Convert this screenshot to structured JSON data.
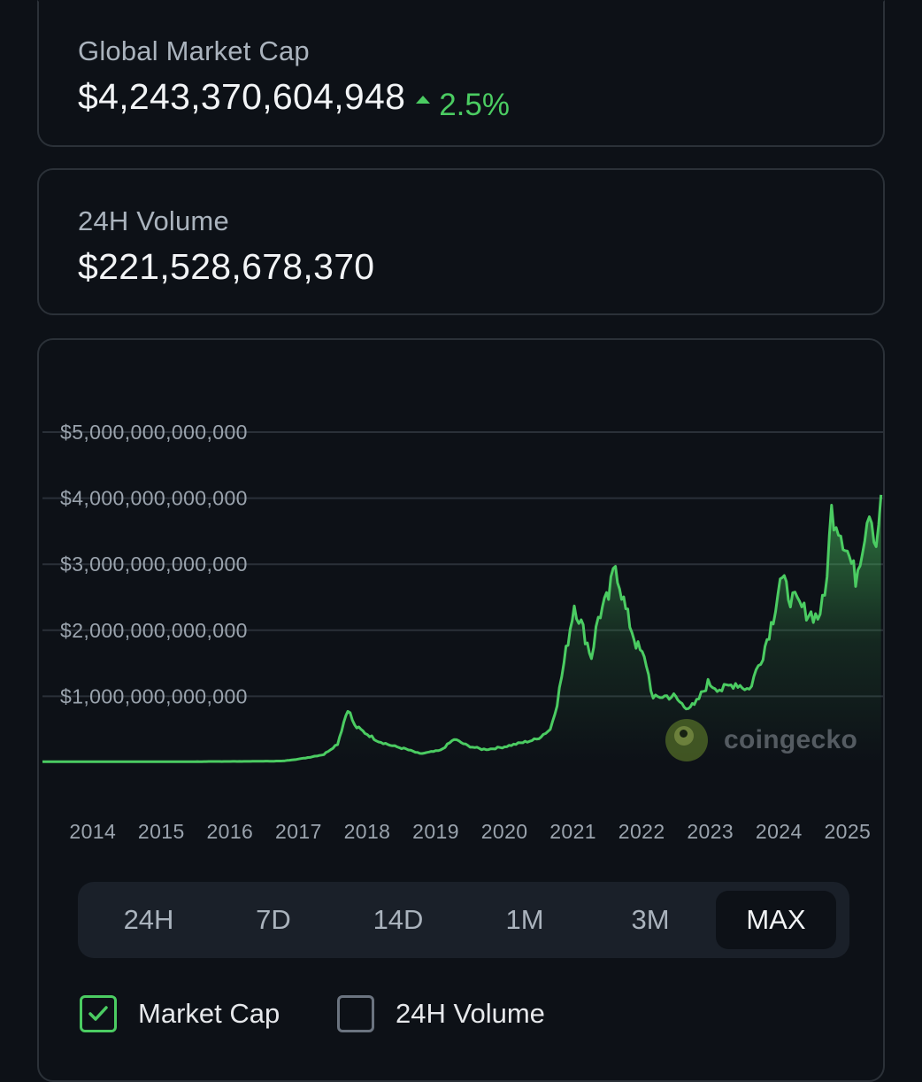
{
  "market_cap": {
    "label": "Global Market Cap",
    "value": "$4,243,370,604,948",
    "change": "2.5%",
    "change_direction": "up",
    "change_color": "#4bcc62"
  },
  "volume": {
    "label": "24H Volume",
    "value": "$221,528,678,370"
  },
  "watermark": "coingecko",
  "range_tabs": [
    {
      "label": "24H",
      "active": false
    },
    {
      "label": "7D",
      "active": false
    },
    {
      "label": "14D",
      "active": false
    },
    {
      "label": "1M",
      "active": false
    },
    {
      "label": "3M",
      "active": false
    },
    {
      "label": "MAX",
      "active": true
    }
  ],
  "legend": [
    {
      "label": "Market Cap",
      "checked": true,
      "icon": "check-icon"
    },
    {
      "label": "24H Volume",
      "checked": false
    }
  ],
  "chart_data": {
    "type": "area",
    "title": "",
    "xlabel": "",
    "ylabel": "",
    "line_color": "#4bcc62",
    "grid": true,
    "ylim": [
      0,
      5000000000000
    ],
    "y_ticks": [
      {
        "value": 1000000000000,
        "label": "$1,000,000,000,000"
      },
      {
        "value": 2000000000000,
        "label": "$2,000,000,000,000"
      },
      {
        "value": 3000000000000,
        "label": "$3,000,000,000,000"
      },
      {
        "value": 4000000000000,
        "label": "$4,000,000,000,000"
      },
      {
        "value": 5000000000000,
        "label": "$5,000,000,000,000"
      }
    ],
    "xlim": [
      2013.5,
      2025.75
    ],
    "x_ticks": [
      {
        "value": 2014,
        "label": "2014"
      },
      {
        "value": 2015,
        "label": "2015"
      },
      {
        "value": 2016,
        "label": "2016"
      },
      {
        "value": 2017,
        "label": "2017"
      },
      {
        "value": 2018,
        "label": "2018"
      },
      {
        "value": 2019,
        "label": "2019"
      },
      {
        "value": 2020,
        "label": "2020"
      },
      {
        "value": 2021,
        "label": "2021"
      },
      {
        "value": 2022,
        "label": "2022"
      },
      {
        "value": 2023,
        "label": "2023"
      },
      {
        "value": 2024,
        "label": "2024"
      },
      {
        "value": 2025,
        "label": "2025"
      }
    ],
    "series": [
      {
        "name": "Market Cap",
        "x": [
          2013.5,
          2014.5,
          2015.5,
          2016.5,
          2017.0,
          2017.3,
          2017.6,
          2017.8,
          2017.95,
          2018.05,
          2018.2,
          2018.4,
          2018.6,
          2018.8,
          2019.0,
          2019.3,
          2019.5,
          2019.7,
          2019.9,
          2020.0,
          2020.2,
          2020.5,
          2020.7,
          2020.9,
          2021.0,
          2021.1,
          2021.25,
          2021.35,
          2021.5,
          2021.6,
          2021.75,
          2021.85,
          2022.0,
          2022.15,
          2022.3,
          2022.4,
          2022.5,
          2022.7,
          2022.85,
          2023.0,
          2023.2,
          2023.4,
          2023.6,
          2023.8,
          2024.0,
          2024.15,
          2024.25,
          2024.4,
          2024.6,
          2024.8,
          2024.9,
          2025.0,
          2025.1,
          2025.2,
          2025.35,
          2025.45,
          2025.55,
          2025.65,
          2025.72
        ],
        "values": [
          10000000000,
          10000000000,
          10000000000,
          15000000000,
          20000000000,
          60000000000,
          120000000000,
          280000000000,
          820000000000,
          550000000000,
          450000000000,
          320000000000,
          250000000000,
          200000000000,
          130000000000,
          180000000000,
          350000000000,
          250000000000,
          200000000000,
          200000000000,
          230000000000,
          300000000000,
          350000000000,
          500000000000,
          900000000000,
          1500000000000,
          2400000000000,
          2100000000000,
          1600000000000,
          2200000000000,
          2500000000000,
          3000000000000,
          2300000000000,
          1800000000000,
          1500000000000,
          950000000000,
          1000000000000,
          1000000000000,
          850000000000,
          850000000000,
          1200000000000,
          1100000000000,
          1200000000000,
          1100000000000,
          1650000000000,
          2200000000000,
          2800000000000,
          2500000000000,
          2300000000000,
          2200000000000,
          2500000000000,
          3800000000000,
          3600000000000,
          3300000000000,
          2800000000000,
          3300000000000,
          3900000000000,
          3300000000000,
          4050000000000
        ]
      }
    ]
  }
}
